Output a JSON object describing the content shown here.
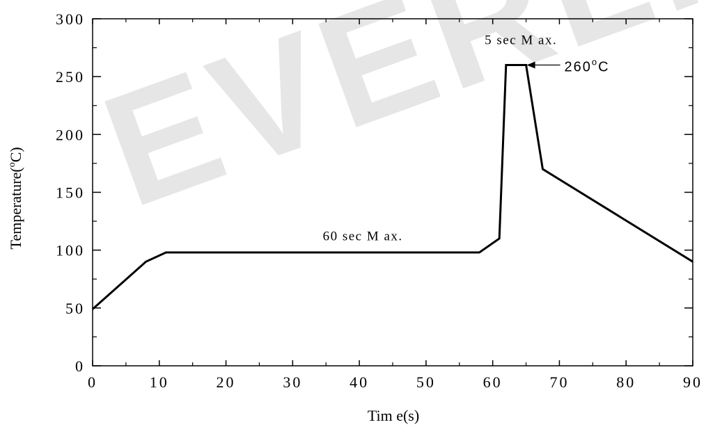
{
  "chart_data": {
    "type": "line",
    "title": "",
    "xlabel": "Tim e(s)",
    "ylabel": "Temperature(",
    "ylabel_sup": "o",
    "ylabel_end": "C)",
    "xlim": [
      0,
      90
    ],
    "ylim": [
      0,
      300
    ],
    "x_ticks": [
      0,
      10,
      20,
      30,
      40,
      50,
      60,
      70,
      80,
      90
    ],
    "y_ticks": [
      0,
      50,
      100,
      150,
      200,
      250,
      300
    ],
    "grid": false,
    "series": [
      {
        "x": [
          0,
          8,
          11,
          58,
          61,
          62,
          65,
          67.5,
          90
        ],
        "y": [
          49,
          90,
          98,
          98,
          110,
          260,
          260,
          170,
          90
        ]
      }
    ],
    "annotations": {
      "soak": {
        "text": "60 sec M ax.",
        "x": 40,
        "y": 106
      },
      "peak_time": {
        "text": "5 sec M ax.",
        "x": 63.5,
        "y": 272
      },
      "peak_temp": {
        "text_main": "260",
        "text_sup": "o",
        "text_end": "C",
        "x": 65,
        "y": 260
      }
    },
    "colors": {
      "line": "#000000",
      "axis": "#000000",
      "watermark": "#e6e6e6"
    },
    "watermark": "EVERLIGHT"
  }
}
